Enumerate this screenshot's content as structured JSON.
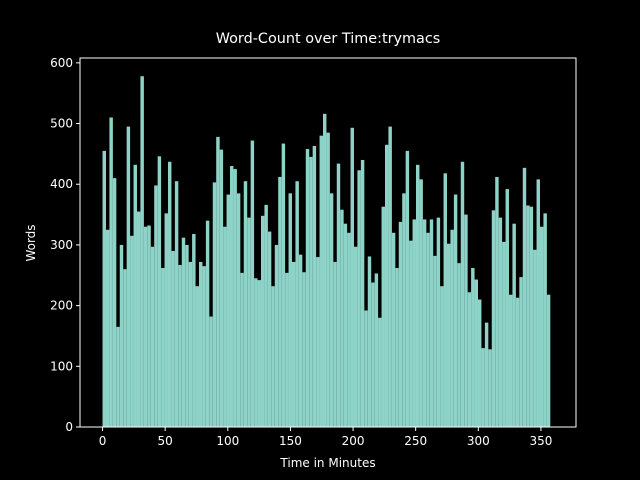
{
  "chart_data": {
    "type": "bar",
    "title": "Word-Count over Time:trymacs",
    "x_label": "Time in Minutes",
    "y_label": "Words",
    "color": "#8dd3c7",
    "x": [
      0,
      2.75,
      5.5,
      8.25,
      11,
      13.75,
      16.5,
      19.25,
      22,
      24.75,
      27.5,
      30.25,
      33,
      35.75,
      38.5,
      41.25,
      44,
      46.75,
      49.5,
      52.25,
      55,
      57.75,
      60.5,
      63.25,
      66,
      68.75,
      71.5,
      74.25,
      77,
      79.75,
      82.5,
      85.25,
      88,
      90.75,
      93.5,
      96.25,
      99,
      101.75,
      104.5,
      107.25,
      110,
      112.75,
      115.5,
      118.25,
      121,
      123.75,
      126.5,
      129.25,
      132,
      134.75,
      137.5,
      140.25,
      143,
      145.75,
      148.5,
      151.25,
      154,
      156.75,
      159.5,
      162.25,
      165,
      167.75,
      170.5,
      173.25,
      176,
      178.75,
      181.5,
      184.25,
      187,
      189.75,
      192.5,
      195.25,
      198,
      200.75,
      203.5,
      206.25,
      209,
      211.75,
      214.5,
      217.25,
      220,
      222.75,
      225.5,
      228.25,
      231,
      233.75,
      236.5,
      239.25,
      242,
      244.75,
      247.5,
      250.25,
      253,
      255.75,
      258.5,
      261.25,
      264,
      266.75,
      269.5,
      272.25,
      275,
      277.75,
      280.5,
      283.25,
      286,
      288.75,
      291.5,
      294.25,
      297,
      299.75,
      302.5,
      305.25,
      308,
      310.75,
      313.5,
      316.25,
      319,
      321.75,
      324.5,
      327.25,
      330,
      332.75,
      335.5,
      338.25,
      341,
      343.75,
      346.5,
      349.25,
      352,
      354.75
    ],
    "values": [
      455,
      325,
      510,
      410,
      165,
      300,
      260,
      495,
      315,
      432,
      355,
      578,
      330,
      332,
      297,
      398,
      446,
      262,
      352,
      437,
      290,
      405,
      267,
      312,
      300,
      272,
      318,
      232,
      272,
      265,
      340,
      182,
      403,
      478,
      457,
      330,
      383,
      430,
      425,
      385,
      254,
      405,
      345,
      472,
      245,
      242,
      348,
      366,
      322,
      232,
      300,
      412,
      467,
      254,
      385,
      272,
      405,
      284,
      255,
      458,
      445,
      463,
      280,
      480,
      516,
      485,
      385,
      272,
      434,
      358,
      335,
      320,
      493,
      297,
      423,
      440,
      192,
      281,
      238,
      253,
      180,
      363,
      465,
      495,
      320,
      262,
      338,
      385,
      455,
      307,
      342,
      432,
      408,
      342,
      320,
      342,
      282,
      345,
      232,
      418,
      302,
      325,
      383,
      270,
      437,
      350,
      222,
      262,
      243,
      210,
      130,
      172,
      128,
      357,
      412,
      345,
      305,
      392,
      218,
      335,
      213,
      247,
      427,
      365,
      363,
      292,
      408,
      330,
      352,
      218
    ],
    "xlim": [
      -18,
      378
    ],
    "ylim": [
      0,
      608
    ],
    "xticks": [
      0,
      50,
      100,
      150,
      200,
      250,
      300,
      350
    ],
    "yticks": [
      0,
      100,
      200,
      300,
      400,
      500,
      600
    ]
  }
}
